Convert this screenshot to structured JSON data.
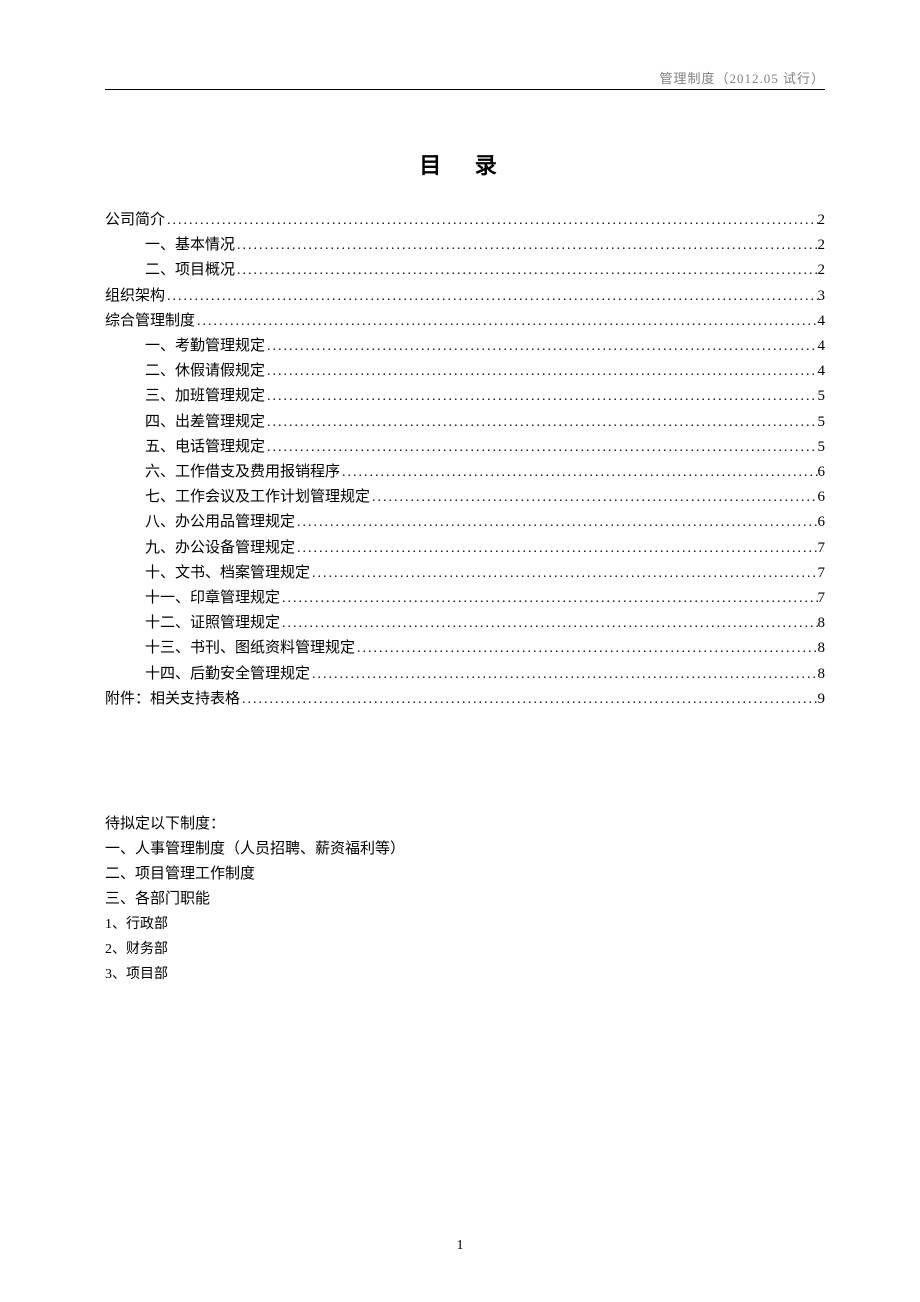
{
  "header": {
    "text": "管理制度（2012.05 试行）"
  },
  "title": "目  录",
  "toc": [
    {
      "label": "公司简介",
      "page": "2",
      "indent": 0
    },
    {
      "label": "一、基本情况",
      "page": "2",
      "indent": 1
    },
    {
      "label": "二、项目概况",
      "page": "2",
      "indent": 1
    },
    {
      "label": "组织架构",
      "page": "3",
      "indent": 0
    },
    {
      "label": "综合管理制度",
      "page": "4",
      "indent": 0
    },
    {
      "label": "一、考勤管理规定",
      "page": "4",
      "indent": 1
    },
    {
      "label": "二、休假请假规定",
      "page": "4",
      "indent": 1
    },
    {
      "label": "三、加班管理规定",
      "page": "5",
      "indent": 1
    },
    {
      "label": "四、出差管理规定",
      "page": "5",
      "indent": 1
    },
    {
      "label": "五、电话管理规定",
      "page": "5",
      "indent": 1
    },
    {
      "label": "六、工作借支及费用报销程序",
      "page": "6",
      "indent": 1
    },
    {
      "label": "七、工作会议及工作计划管理规定",
      "page": "6",
      "indent": 1
    },
    {
      "label": "八、办公用品管理规定",
      "page": "6",
      "indent": 1
    },
    {
      "label": "九、办公设备管理规定",
      "page": "7",
      "indent": 1
    },
    {
      "label": "十、文书、档案管理规定",
      "page": "7",
      "indent": 1
    },
    {
      "label": "十一、印章管理规定",
      "page": "7",
      "indent": 1
    },
    {
      "label": "十二、证照管理规定",
      "page": "8",
      "indent": 1
    },
    {
      "label": "十三、书刊、图纸资料管理规定",
      "page": "8",
      "indent": 1
    },
    {
      "label": "十四、后勤安全管理规定",
      "page": "8",
      "indent": 1
    },
    {
      "label": "附件：相关支持表格",
      "page": "9",
      "indent": 0
    }
  ],
  "pending": {
    "title": "待拟定以下制度：",
    "items": [
      "一、人事管理制度（人员招聘、薪资福利等）",
      "二、项目管理工作制度",
      "三、各部门职能"
    ],
    "subitems": [
      "1、行政部",
      "2、财务部",
      "3、项目部"
    ]
  },
  "pageNumber": "1",
  "colors": {
    "text": "#000000",
    "headerText": "#808080",
    "background": "#ffffff",
    "line": "#000000"
  },
  "typography": {
    "fontFamily": "SimSun",
    "titleFontSize": 22,
    "bodyFontSize": 15,
    "headerFontSize": 13,
    "lineHeight": 25.2
  }
}
